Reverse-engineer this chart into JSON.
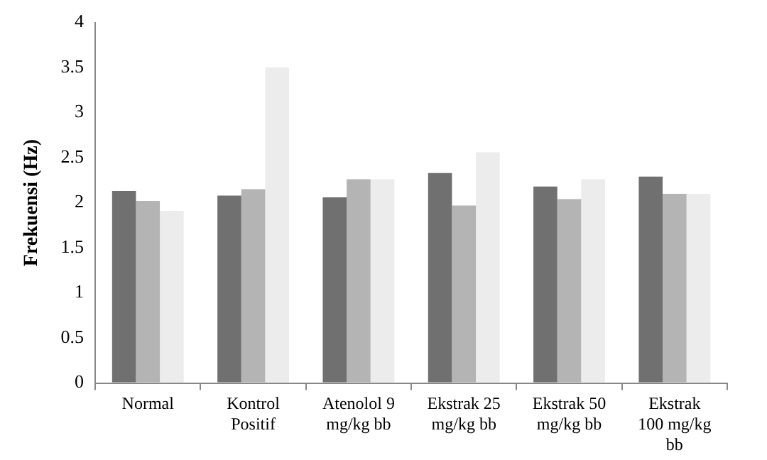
{
  "chart_data": {
    "type": "bar",
    "ylabel": "Frekuensi (Hz)",
    "categories": [
      "Normal",
      "Kontrol Positif",
      "Atenolol 9 mg/kg bb",
      "Ekstrak 25 mg/kg bb",
      "Ekstrak 50 mg/kg bb",
      "Ekstrak 100 mg/kg bb"
    ],
    "series": [
      {
        "color": "#707070",
        "values": [
          2.13,
          2.08,
          2.06,
          2.33,
          2.18,
          2.29
        ]
      },
      {
        "color": "#b4b4b4",
        "values": [
          2.02,
          2.15,
          2.26,
          1.97,
          2.04,
          2.1
        ]
      },
      {
        "color": "#ececec",
        "values": [
          1.91,
          3.5,
          2.26,
          2.56,
          2.26,
          2.1
        ]
      }
    ],
    "ylim": [
      0,
      4
    ],
    "yticks": [
      0,
      0.5,
      1,
      1.5,
      2,
      2.5,
      3,
      3.5,
      4
    ],
    "grid": false,
    "legend": false
  }
}
